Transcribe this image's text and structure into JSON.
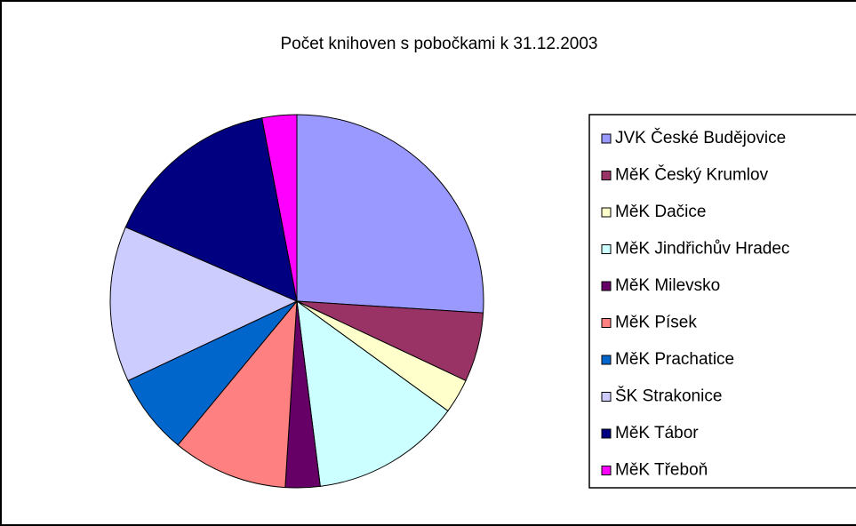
{
  "chart_data": {
    "type": "pie",
    "title": "Počet knihoven s pobočkami k 31.12.2003",
    "categories": [
      "JVK České Budějovice",
      "MěK Český Krumlov",
      "MěK Dačice",
      "MěK Jindřichův Hradec",
      "MěK Milevsko",
      "MěK Písek",
      "MěK Prachatice",
      "ŠK Strakonice",
      "MěK Tábor",
      "MěK Třeboň"
    ],
    "values": [
      26,
      6,
      3,
      13,
      3,
      10,
      7,
      13.5,
      15.5,
      3
    ],
    "colors": [
      "#9999ff",
      "#993366",
      "#ffffcc",
      "#ccffff",
      "#660066",
      "#ff8080",
      "#0066cc",
      "#ccccff",
      "#000080",
      "#ff00ff"
    ],
    "legend": "right"
  }
}
